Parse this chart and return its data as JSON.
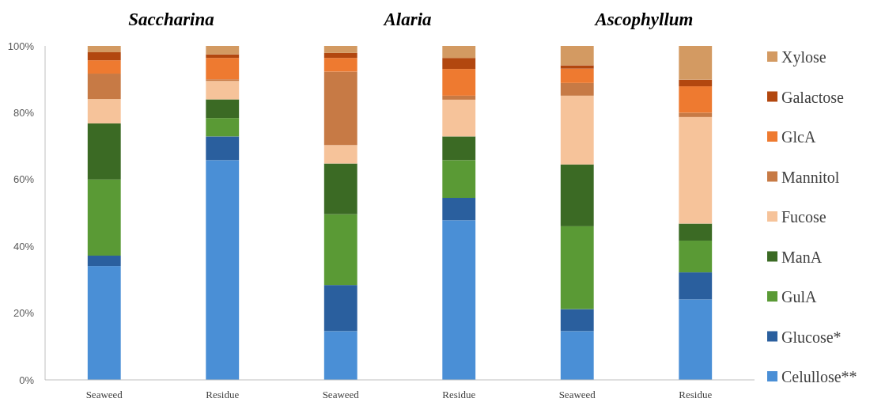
{
  "chart_data": [
    {
      "type": "bar",
      "stacked": true,
      "title": "Saccharina",
      "categories": [
        "Seaweed",
        "Residue"
      ],
      "ylim": [
        0,
        100
      ],
      "yticks": [
        {
          "value": 0,
          "label": "0%"
        },
        {
          "value": 20,
          "label": "20%"
        },
        {
          "value": 40,
          "label": "40%"
        },
        {
          "value": 60,
          "label": "60%"
        },
        {
          "value": 80,
          "label": "80%"
        },
        {
          "value": 100,
          "label": "100%"
        }
      ],
      "legend": false,
      "series": [
        {
          "color": "#4a8fd6",
          "values": [
            34.1,
            65.8
          ]
        },
        {
          "color": "#2a5f9e",
          "values": [
            3.1,
            7.1
          ]
        },
        {
          "color": "#5a9a35",
          "values": [
            22.8,
            5.5
          ]
        },
        {
          "color": "#3b6a24",
          "values": [
            16.8,
            5.6
          ]
        },
        {
          "color": "#f6c39a",
          "values": [
            7.3,
            5.5
          ]
        },
        {
          "color": "#c77a45",
          "values": [
            7.6,
            0.5
          ]
        },
        {
          "color": "#ee7a30",
          "values": [
            4.0,
            6.4
          ]
        },
        {
          "color": "#b2470f",
          "values": [
            2.4,
            1.1
          ]
        },
        {
          "color": "#d39a62",
          "values": [
            1.9,
            2.5
          ]
        }
      ]
    },
    {
      "type": "bar",
      "stacked": true,
      "title": "Alaria",
      "categories": [
        "Seaweed",
        "Residue"
      ],
      "ylim": [
        0,
        100
      ],
      "tick_labels": "x",
      "legend": false,
      "series": [
        {
          "color": "#4a8fd6",
          "values": [
            14.6,
            47.8
          ]
        },
        {
          "color": "#2a5f9e",
          "values": [
            13.8,
            6.7
          ]
        },
        {
          "color": "#5a9a35",
          "values": [
            21.2,
            11.3
          ]
        },
        {
          "color": "#3b6a24",
          "values": [
            15.2,
            7.1
          ]
        },
        {
          "color": "#f6c39a",
          "values": [
            5.5,
            11.0
          ]
        },
        {
          "color": "#c77a45",
          "values": [
            22.0,
            1.2
          ]
        },
        {
          "color": "#ee7a30",
          "values": [
            4.1,
            8.0
          ]
        },
        {
          "color": "#b2470f",
          "values": [
            1.5,
            3.3
          ]
        },
        {
          "color": "#d39a62",
          "values": [
            2.1,
            3.6
          ]
        }
      ]
    },
    {
      "type": "bar",
      "stacked": true,
      "title": "Ascophyllum",
      "categories": [
        "Seaweed",
        "Residue"
      ],
      "ylim": [
        0,
        100
      ],
      "tick_labels": "x",
      "legend": "right",
      "series": [
        {
          "name": "Celullose**",
          "color": "#4a8fd6",
          "values": [
            14.6,
            24.1
          ]
        },
        {
          "name": "Glucose*",
          "color": "#2a5f9e",
          "values": [
            6.6,
            8.1
          ]
        },
        {
          "name": "GulA",
          "color": "#5a9a35",
          "values": [
            24.8,
            9.5
          ]
        },
        {
          "name": "ManA",
          "color": "#3b6a24",
          "values": [
            18.5,
            5.1
          ]
        },
        {
          "name": "Fucose",
          "color": "#f6c39a",
          "values": [
            20.6,
            31.9
          ]
        },
        {
          "name": "Mannitol",
          "color": "#c77a45",
          "values": [
            3.8,
            1.3
          ]
        },
        {
          "name": "GlcA",
          "color": "#ee7a30",
          "values": [
            4.3,
            7.9
          ]
        },
        {
          "name": "Galactose",
          "color": "#b2470f",
          "values": [
            1.0,
            2.0
          ]
        },
        {
          "name": "Xylose",
          "color": "#d39a62",
          "values": [
            5.8,
            10.1
          ]
        }
      ]
    }
  ]
}
